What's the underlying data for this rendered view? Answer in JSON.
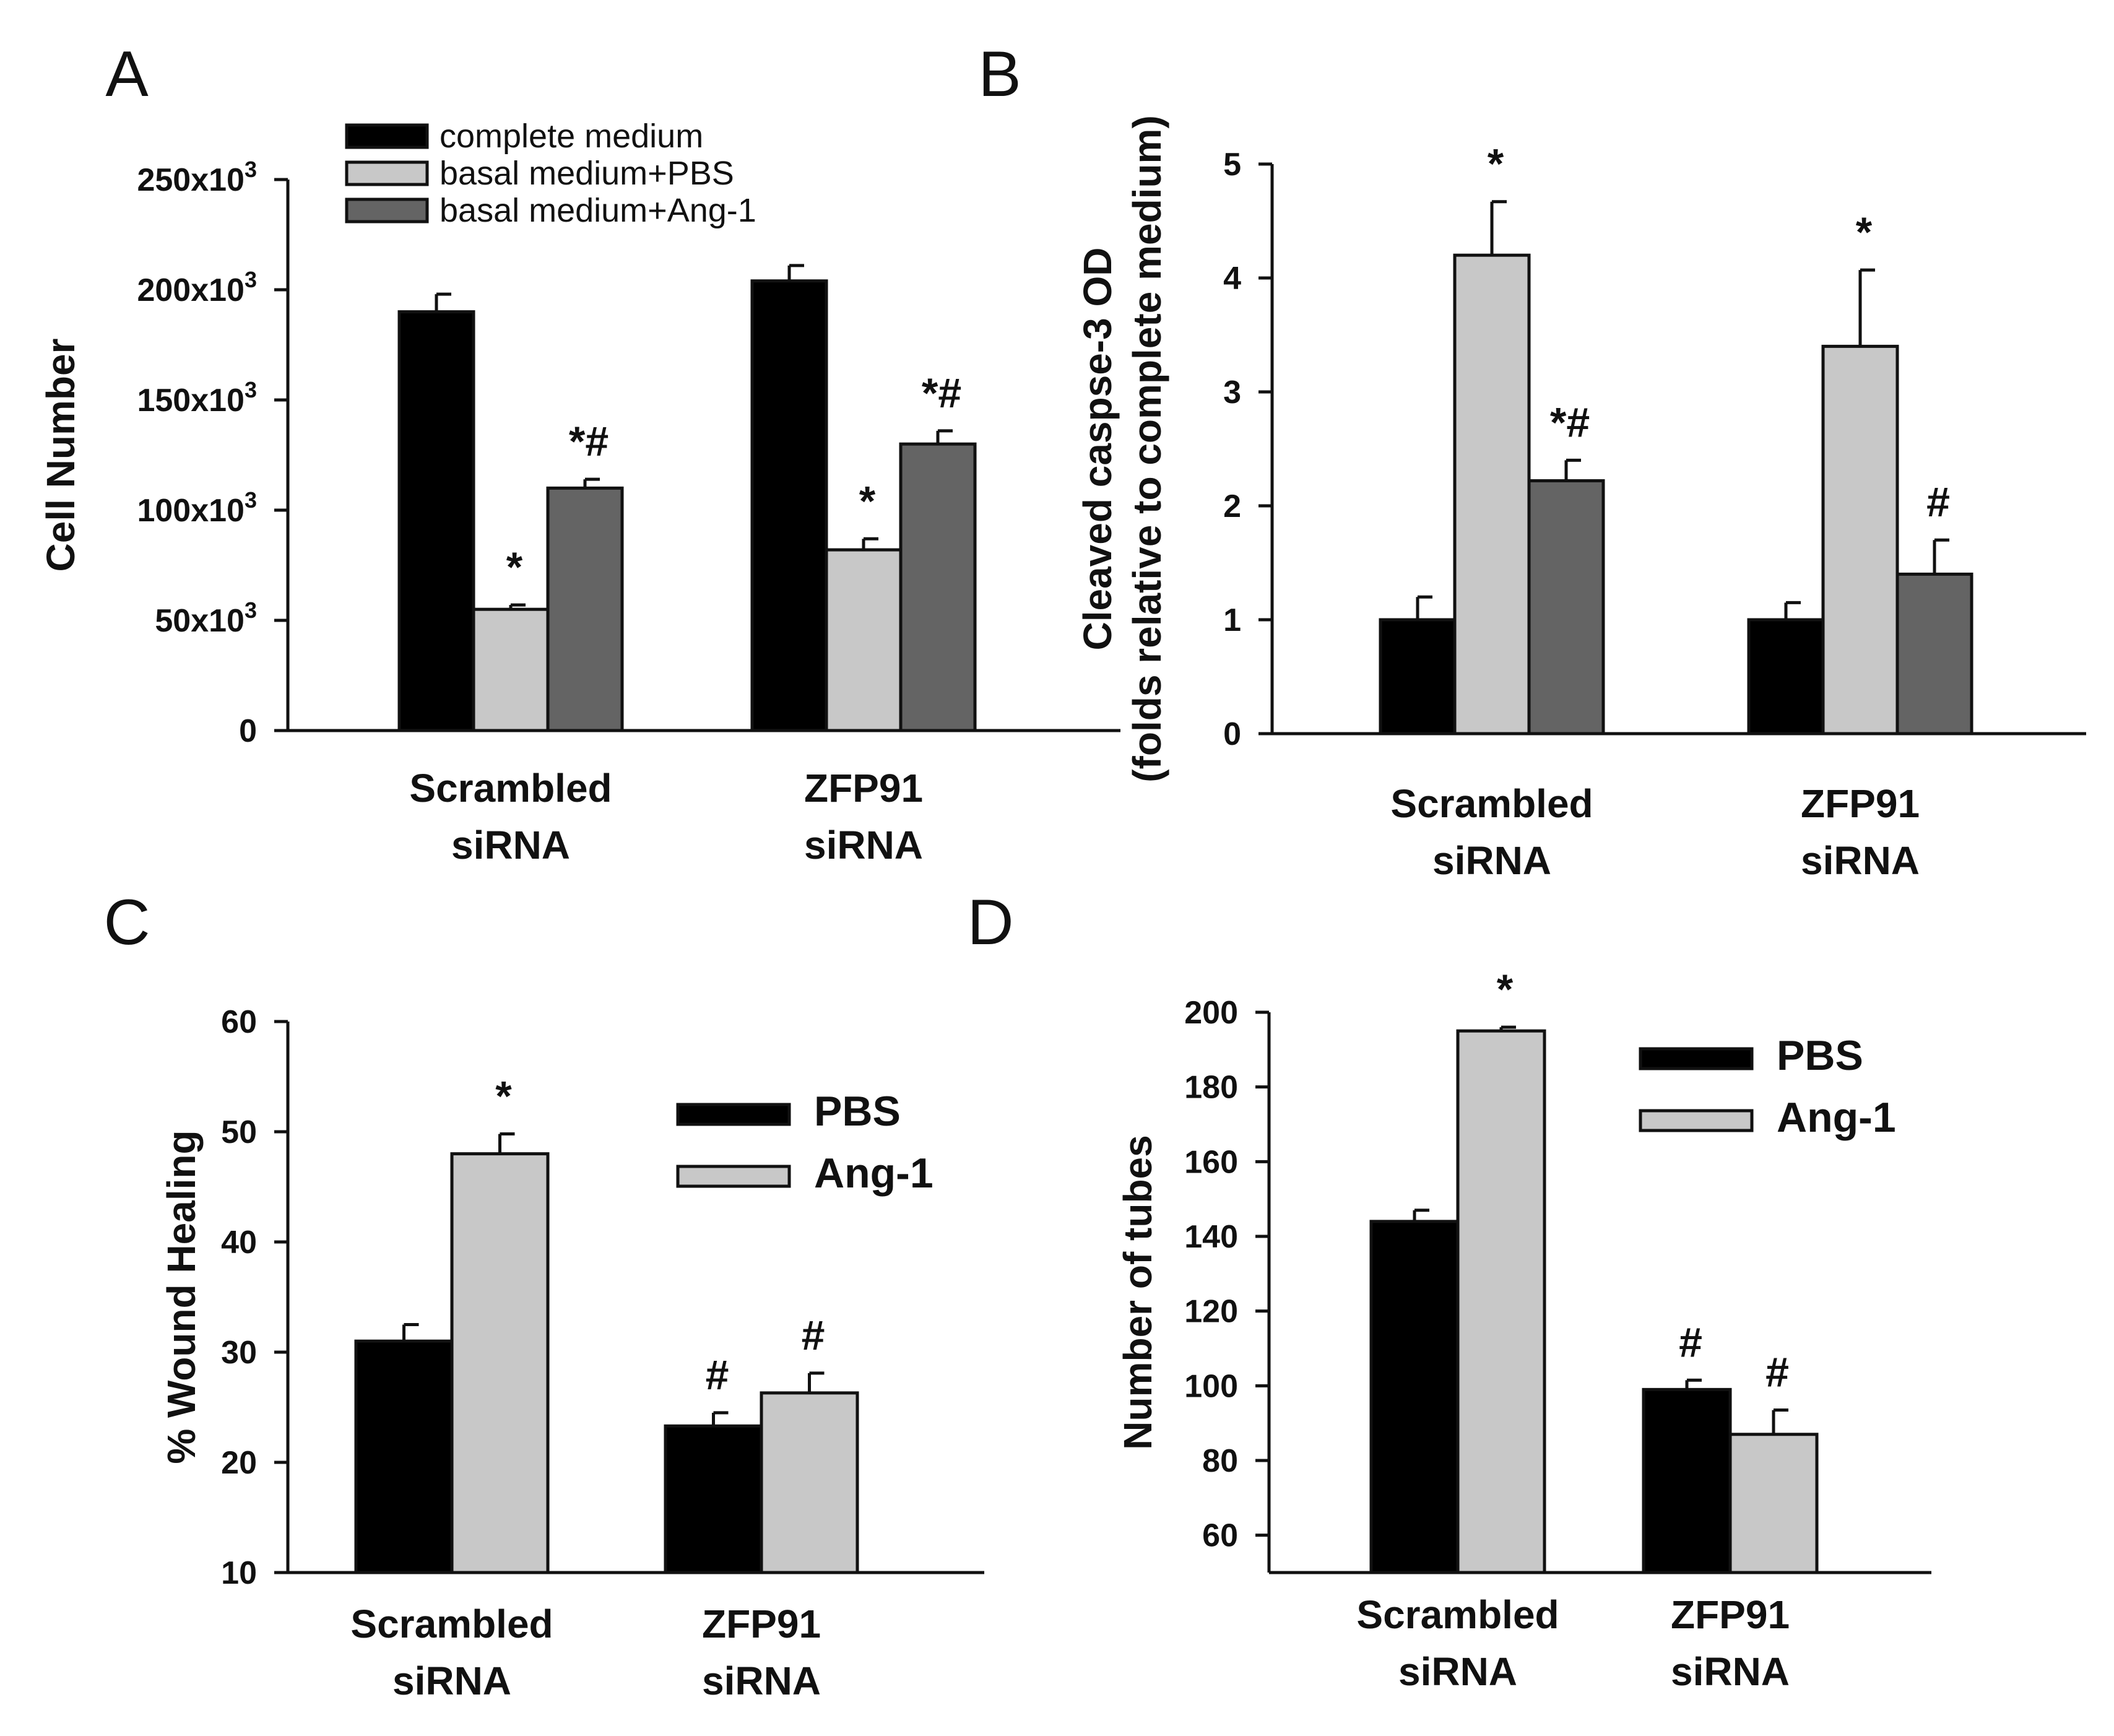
{
  "chart_data": [
    {
      "panel": "A",
      "type": "bar",
      "categories": [
        [
          "Scrambled",
          "siRNA"
        ],
        [
          "ZFP91",
          "siRNA"
        ]
      ],
      "series": [
        {
          "name": "complete medium",
          "color": "#000000",
          "values": [
            190000,
            204000
          ],
          "errors": [
            8000,
            7000
          ],
          "sig": [
            "",
            ""
          ]
        },
        {
          "name": "basal medium+PBS",
          "color": "#c8c8c8",
          "values": [
            55000,
            82000
          ],
          "errors": [
            2000,
            5000
          ],
          "sig": [
            "*",
            "*"
          ]
        },
        {
          "name": "basal medium+Ang-1",
          "color": "#646464",
          "values": [
            110000,
            130000
          ],
          "errors": [
            4000,
            6000
          ],
          "sig": [
            "*#",
            "*#"
          ]
        }
      ],
      "ylabel": [
        "Cell Number"
      ],
      "ylim": [
        0,
        250000
      ],
      "yticks": [
        0,
        50000,
        100000,
        150000,
        200000,
        250000
      ],
      "ytick_labels": [
        "0",
        "50x10",
        "100x10",
        "150x10",
        "200x10",
        "250x10"
      ],
      "ytick_sup": [
        "",
        "3",
        "3",
        "3",
        "3",
        "3"
      ],
      "legend": "top-left"
    },
    {
      "panel": "B",
      "type": "bar",
      "categories": [
        [
          "Scrambled",
          "siRNA"
        ],
        [
          "ZFP91",
          "siRNA"
        ]
      ],
      "series": [
        {
          "name": "complete medium",
          "color": "#000000",
          "values": [
            1.0,
            1.0
          ],
          "errors": [
            0.2,
            0.15
          ],
          "sig": [
            "",
            ""
          ]
        },
        {
          "name": "basal medium+PBS",
          "color": "#c8c8c8",
          "values": [
            4.2,
            3.4
          ],
          "errors": [
            0.47,
            0.67
          ],
          "sig": [
            "*",
            "*"
          ]
        },
        {
          "name": "basal medium+Ang-1",
          "color": "#646464",
          "values": [
            2.22,
            1.4
          ],
          "errors": [
            0.18,
            0.3
          ],
          "sig": [
            "*#",
            "#"
          ]
        }
      ],
      "ylabel": [
        "Cleaved caspse-3 OD",
        "(folds relative to complete medium)"
      ],
      "ylim": [
        0,
        5
      ],
      "yticks": [
        0,
        1,
        2,
        3,
        4,
        5
      ],
      "ytick_labels": [
        "0",
        "1",
        "2",
        "3",
        "4",
        "5"
      ],
      "ytick_sup": [
        "",
        "",
        "",
        "",
        "",
        ""
      ],
      "legend": "none"
    },
    {
      "panel": "C",
      "type": "bar",
      "categories": [
        [
          "Scrambled",
          "siRNA"
        ],
        [
          "ZFP91",
          "siRNA"
        ]
      ],
      "series": [
        {
          "name": "PBS",
          "color": "#000000",
          "values": [
            31,
            23.3
          ],
          "errors": [
            1.5,
            1.2
          ],
          "sig": [
            "",
            "#"
          ]
        },
        {
          "name": "Ang-1",
          "color": "#c8c8c8",
          "values": [
            48,
            26.3
          ],
          "errors": [
            1.8,
            1.8
          ],
          "sig": [
            "*",
            "#"
          ]
        }
      ],
      "ylabel": [
        "% Wound Healing"
      ],
      "ylim": [
        10,
        60
      ],
      "yticks": [
        10,
        20,
        30,
        40,
        50,
        60
      ],
      "ytick_labels": [
        "10",
        "20",
        "30",
        "40",
        "50",
        "60"
      ],
      "ytick_sup": [
        "",
        "",
        "",
        "",
        "",
        ""
      ],
      "legend": "top-right"
    },
    {
      "panel": "D",
      "type": "bar",
      "categories": [
        [
          "Scrambled",
          "siRNA"
        ],
        [
          "ZFP91",
          "siRNA"
        ]
      ],
      "series": [
        {
          "name": "PBS",
          "color": "#000000",
          "values": [
            144,
            99
          ],
          "errors": [
            3,
            2.5
          ],
          "sig": [
            "",
            "#"
          ]
        },
        {
          "name": "Ang-1",
          "color": "#c8c8c8",
          "values": [
            195,
            87
          ],
          "errors": [
            1,
            6.5
          ],
          "sig": [
            "*",
            "#"
          ]
        }
      ],
      "ylabel": [
        "Number of tubes"
      ],
      "ylim": [
        50,
        200
      ],
      "yticks": [
        60,
        80,
        100,
        120,
        140,
        160,
        180,
        200
      ],
      "ytick_labels": [
        "60",
        "80",
        "100",
        "120",
        "140",
        "160",
        "180",
        "200"
      ],
      "ytick_sup": [
        "",
        "",
        "",
        "",
        "",
        "",
        "",
        ""
      ],
      "legend": "top-right"
    }
  ]
}
